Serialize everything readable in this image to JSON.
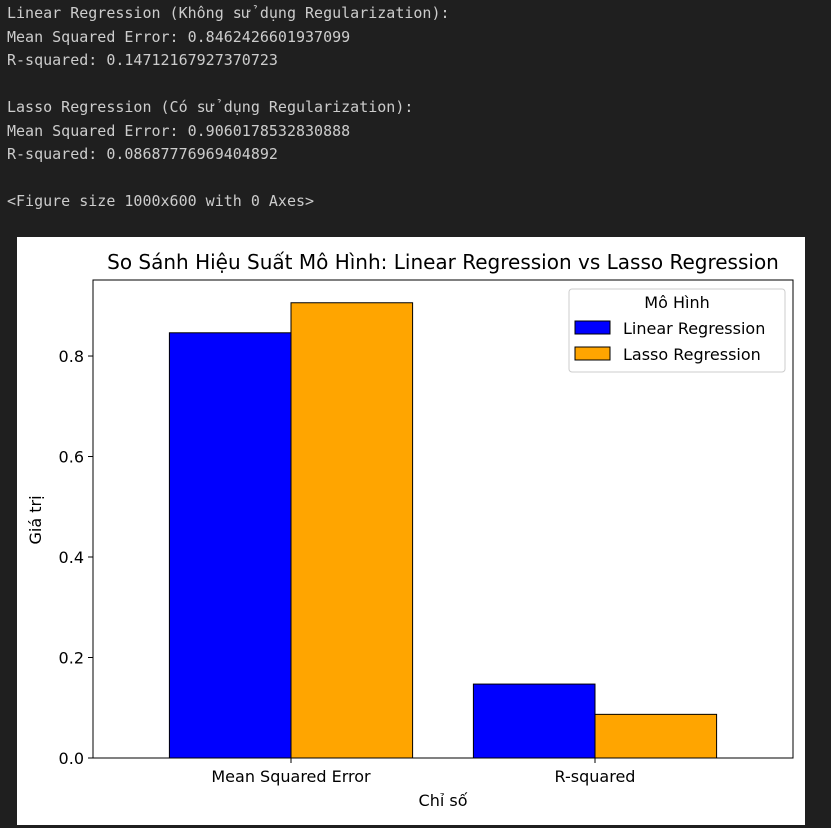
{
  "output": {
    "blocks": [
      [
        "Linear Regression (Không sử dụng Regularization):",
        "Mean Squared Error: 0.8462426601937099",
        "R-squared: 0.14712167927370723"
      ],
      [
        "Lasso Regression (Có sử dụng Regularization):",
        "Mean Squared Error: 0.9060178532830888",
        "R-squared: 0.08687776969404892"
      ],
      [
        "<Figure size 1000x600 with 0 Axes>"
      ]
    ]
  },
  "chart_data": {
    "type": "bar",
    "title": "So Sánh Hiệu Suất Mô Hình: Linear Regression vs Lasso Regression",
    "x_label": "Chỉ số",
    "y_label": "Giá trị",
    "categories": [
      "Mean Squared Error",
      "R-squared"
    ],
    "series": [
      {
        "name": "Linear Regression",
        "color": "#0000ff",
        "values": [
          0.8462426601937099,
          0.14712167927370723
        ]
      },
      {
        "name": "Lasso Regression",
        "color": "#ffa500",
        "values": [
          0.9060178532830888,
          0.08687776969404892
        ]
      }
    ],
    "ylim": [
      0,
      0.9513
    ],
    "yticks": [
      {
        "value": 0,
        "label": "0.0"
      },
      0.2,
      0.4,
      0.6,
      0.8
    ],
    "legend_title": "Mô Hình",
    "legend": "upper right",
    "grid": false
  }
}
